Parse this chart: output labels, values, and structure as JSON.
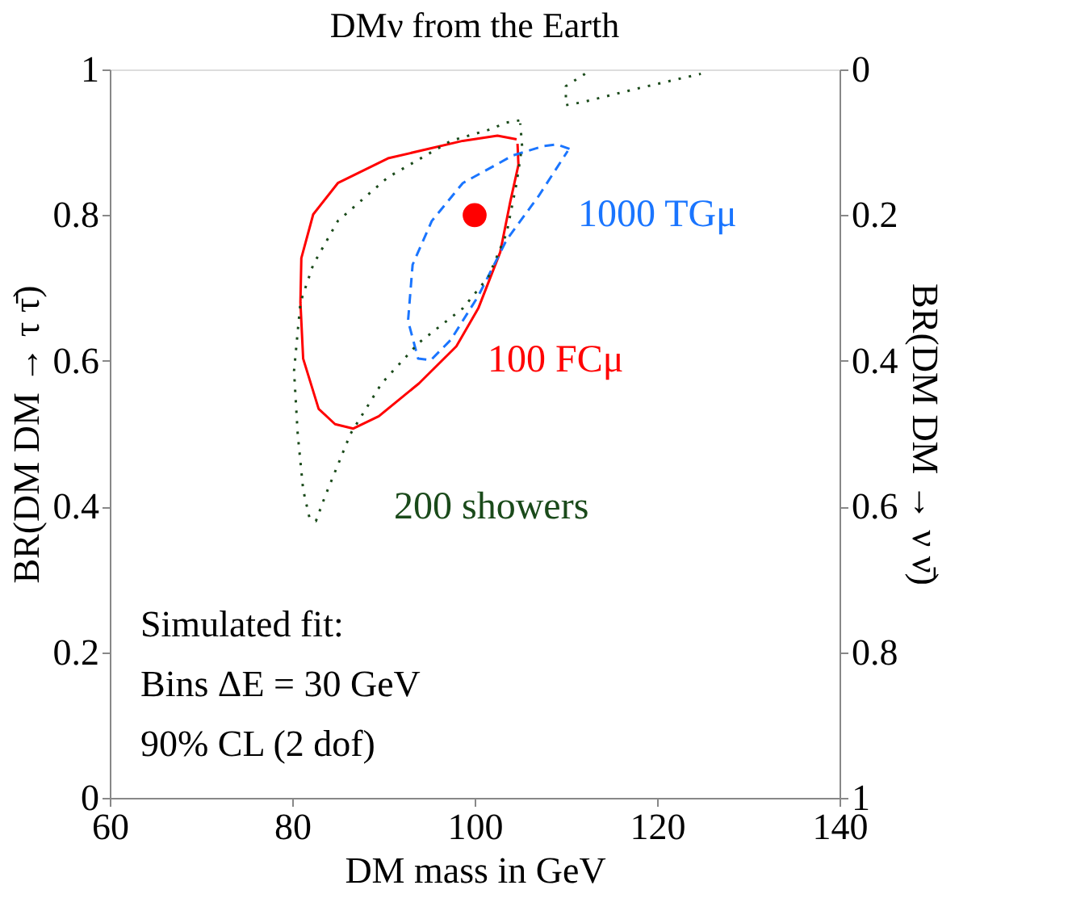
{
  "chart_data": {
    "type": "line",
    "title": "DMν from the Earth",
    "xlabel": "DM mass in GeV",
    "ylabel": "BR(DM DM → τ τ̄)",
    "y2label": "BR(DM DM → ν ν̄)",
    "xlim": [
      60,
      140
    ],
    "xticks": [
      60,
      80,
      100,
      120,
      140
    ],
    "ylim": [
      0,
      1
    ],
    "yticks": [
      0,
      0.2,
      0.4,
      0.6,
      0.8,
      1
    ],
    "y2lim": [
      1,
      0
    ],
    "y2ticks": [
      0,
      0.2,
      0.4,
      0.6,
      0.8,
      1
    ],
    "grid": false,
    "legend": false,
    "annotations": [
      "Simulated fit:",
      "Bins ΔE = 30 GeV",
      "90% CL (2 dof)"
    ],
    "series": [
      {
        "name": "100 FCμ",
        "color": "#ff0000",
        "line_style": "solid",
        "x": [
          104.6,
          102.5,
          98.7,
          90.5,
          85,
          82.3,
          81,
          80.9,
          81.2,
          82.9,
          84.7,
          86.7,
          89.5,
          93.9,
          98,
          100.4,
          102.8,
          103.9,
          104.8,
          104.7
        ],
        "values": [
          0.904,
          0.909,
          0.902,
          0.878,
          0.844,
          0.801,
          0.741,
          0.68,
          0.603,
          0.534,
          0.513,
          0.507,
          0.524,
          0.569,
          0.62,
          0.672,
          0.749,
          0.818,
          0.869,
          0.898
        ]
      },
      {
        "name": "1000 TGμ",
        "color": "#1a75ff",
        "line_style": "dashed",
        "x": [
          110.4,
          109,
          107.6,
          104.2,
          98.7,
          95.3,
          93.2,
          92.7,
          93.8,
          95.2,
          97.4,
          100.4,
          103.5,
          107,
          110.2
        ],
        "values": [
          0.891,
          0.897,
          0.895,
          0.882,
          0.844,
          0.792,
          0.732,
          0.655,
          0.603,
          0.601,
          0.629,
          0.689,
          0.766,
          0.826,
          0.888
        ]
      },
      {
        "name": "200 showers",
        "color": "#1a4a1a",
        "line_style": "dotted",
        "x": [
          104.9,
          103.5,
          101.5,
          97.4,
          90.5,
          85,
          82.3,
          80.9,
          80.2,
          80.6,
          81.2,
          81.9,
          82.6,
          83.6,
          86.4,
          89.8,
          93.9,
          98.7,
          101.5,
          103.5,
          104.6,
          105.2,
          105
        ],
        "values": [
          0.93,
          0.927,
          0.917,
          0.902,
          0.852,
          0.792,
          0.732,
          0.68,
          0.586,
          0.5,
          0.423,
          0.384,
          0.38,
          0.414,
          0.5,
          0.569,
          0.625,
          0.672,
          0.715,
          0.775,
          0.844,
          0.895,
          0.926
        ]
      },
      {
        "color": "#1a4a1a",
        "line_style": "dotted",
        "x": [
          112.1,
          110,
          110,
          111.8,
          117.9,
          124.8
        ],
        "values": [
          0.994,
          0.977,
          0.951,
          0.955,
          0.974,
          0.994
        ]
      },
      {
        "type": "scatter",
        "color": "#ff0000",
        "marker": "circle",
        "x": [
          100
        ],
        "values": [
          0.8
        ]
      }
    ]
  }
}
